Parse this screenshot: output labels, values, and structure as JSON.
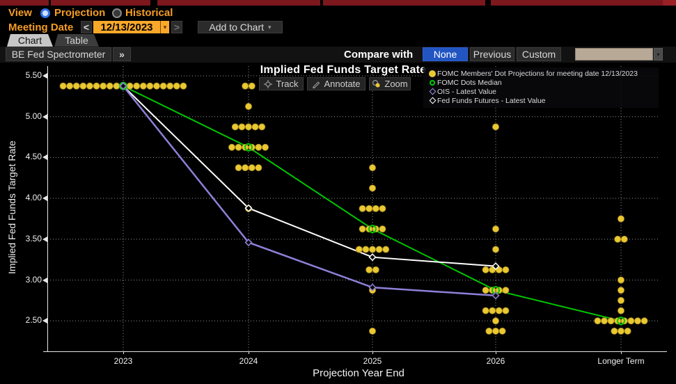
{
  "controls": {
    "view_label": "View",
    "view_options": [
      {
        "label": "Projection",
        "selected": true
      },
      {
        "label": "Historical",
        "selected": false
      }
    ],
    "meeting_date_label": "Meeting Date",
    "prev_arrow": "<",
    "next_arrow": ">",
    "meeting_date_value": "12/13/2023",
    "date_dropdown_arrow": "▾",
    "add_to_chart_label": "Add to Chart",
    "add_to_chart_arrow": "▾"
  },
  "tabs": [
    {
      "label": "Chart",
      "active": true
    },
    {
      "label": "Table",
      "active": false
    }
  ],
  "toolbar": {
    "spectrometer_label": "BE Fed Spectrometer",
    "expand_label": "»",
    "compare_label": "Compare with",
    "compare_options": [
      {
        "label": "None",
        "selected": true
      },
      {
        "label": "Previous",
        "selected": false
      },
      {
        "label": "Custom",
        "selected": false
      }
    ],
    "combo_arrow": "▾"
  },
  "chart": {
    "title": "Implied Fed Funds Target Rate",
    "overlay_buttons": [
      {
        "label": "Track",
        "icon": "crosshair-icon"
      },
      {
        "label": "Annotate",
        "icon": "pencil-icon"
      },
      {
        "label": "Zoom",
        "icon": "magnifier-icon"
      }
    ],
    "legend": [
      {
        "marker": "filled-circle",
        "color": "#e9c832",
        "label": "FOMC Members' Dot Projections for meeting date 12/13/2023"
      },
      {
        "marker": "open-circle",
        "color": "#00cc00",
        "label": "FOMC Dots Median"
      },
      {
        "marker": "diamond",
        "color": "#a093e6",
        "label": "OIS - Latest Value"
      },
      {
        "marker": "diamond",
        "color": "#ffffff",
        "label": "Fed Funds Futures - Latest Value"
      }
    ],
    "y_axis": {
      "label": "Implied Fed Funds Target Rate",
      "ticks": [
        "5.50",
        "5.00",
        "4.50",
        "4.00",
        "3.50",
        "3.00",
        "2.50"
      ]
    },
    "x_axis": {
      "label": "Projection Year End",
      "categories": [
        "2023",
        "2024",
        "2025",
        "2026",
        "Longer Term"
      ]
    }
  },
  "chart_data": {
    "type": "scatter",
    "title": "Implied Fed Funds Target Rate",
    "xlabel": "Projection Year End",
    "ylabel": "Implied Fed Funds Target Rate",
    "ylim": [
      2.25,
      5.65
    ],
    "yticks": [
      5.5,
      5.0,
      4.5,
      4.0,
      3.5,
      3.0,
      2.5
    ],
    "categories": [
      "2023",
      "2024",
      "2025",
      "2026",
      "Longer Term"
    ],
    "grid": "dotted",
    "legend_position": "top-right",
    "dot_color": "#e9c832",
    "dot_columns": [
      {
        "category": "2023",
        "dots": [
          {
            "value": 5.375,
            "count": 19
          }
        ]
      },
      {
        "category": "2024",
        "dots": [
          {
            "value": 5.375,
            "count": 2
          },
          {
            "value": 5.125,
            "count": 1
          },
          {
            "value": 4.875,
            "count": 5
          },
          {
            "value": 4.625,
            "count": 6
          },
          {
            "value": 4.375,
            "count": 4
          },
          {
            "value": 3.875,
            "count": 1
          }
        ]
      },
      {
        "category": "2025",
        "dots": [
          {
            "value": 4.375,
            "count": 1
          },
          {
            "value": 4.125,
            "count": 1
          },
          {
            "value": 3.875,
            "count": 4
          },
          {
            "value": 3.625,
            "count": 4
          },
          {
            "value": 3.375,
            "count": 5
          },
          {
            "value": 3.125,
            "count": 2
          },
          {
            "value": 2.875,
            "count": 1
          },
          {
            "value": 2.375,
            "count": 1
          }
        ]
      },
      {
        "category": "2026",
        "dots": [
          {
            "value": 4.875,
            "count": 1
          },
          {
            "value": 3.625,
            "count": 1
          },
          {
            "value": 3.375,
            "count": 1
          },
          {
            "value": 3.125,
            "count": 4
          },
          {
            "value": 2.875,
            "count": 4
          },
          {
            "value": 2.625,
            "count": 4
          },
          {
            "value": 2.5,
            "count": 1
          },
          {
            "value": 2.375,
            "count": 3
          }
        ]
      },
      {
        "category": "Longer Term",
        "dots": [
          {
            "value": 3.75,
            "count": 1
          },
          {
            "value": 3.5,
            "count": 2
          },
          {
            "value": 3.0,
            "count": 1
          },
          {
            "value": 2.875,
            "count": 1
          },
          {
            "value": 2.75,
            "count": 1
          },
          {
            "value": 2.625,
            "count": 1
          },
          {
            "value": 2.5,
            "count": 8
          },
          {
            "value": 2.375,
            "count": 3
          }
        ]
      }
    ],
    "series": [
      {
        "name": "FOMC Dots Median",
        "color": "#00c600",
        "marker": "open-circle",
        "width": 2,
        "points": [
          [
            "2023",
            5.375
          ],
          [
            "2024",
            4.625
          ],
          [
            "2025",
            3.625
          ],
          [
            "2026",
            2.875
          ],
          [
            "Longer Term",
            2.5
          ]
        ]
      },
      {
        "name": "Fed Funds Futures - Latest Value",
        "color": "#ffffff",
        "marker": "diamond",
        "width": 2,
        "points": [
          [
            "2023",
            5.375
          ],
          [
            "2024",
            3.88
          ],
          [
            "2025",
            3.28
          ],
          [
            "2026",
            3.17
          ]
        ]
      },
      {
        "name": "OIS - Latest Value",
        "color": "#8f80d8",
        "marker": "diamond",
        "width": 2.5,
        "points": [
          [
            "2023",
            5.375
          ],
          [
            "2024",
            3.46
          ],
          [
            "2025",
            2.91
          ],
          [
            "2026",
            2.81
          ]
        ]
      }
    ]
  }
}
